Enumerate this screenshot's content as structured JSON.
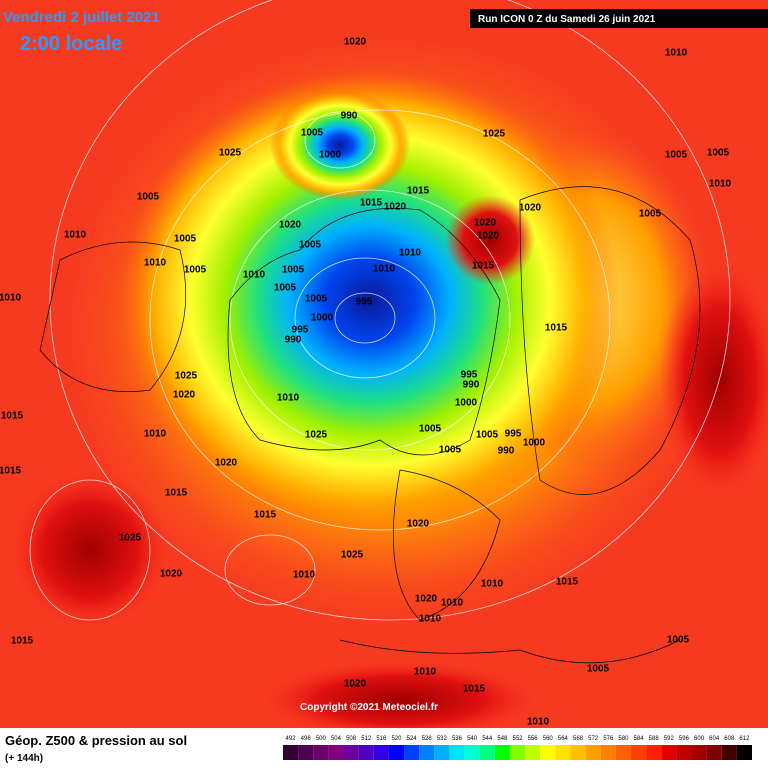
{
  "header": {
    "date": "Vendredi 2 juillet 2021",
    "time": "2:00 locale",
    "run": "Run ICON 0 Z du Samedi 26 juin 2021"
  },
  "footer": {
    "title": "Géop. Z500 & pression au sol",
    "lead": "(+ 144h)",
    "copyright": "Copyright ©2021 Meteociel.fr"
  },
  "legend": {
    "levels": [
      492,
      496,
      500,
      504,
      508,
      512,
      516,
      520,
      524,
      528,
      532,
      536,
      540,
      544,
      548,
      552,
      556,
      560,
      564,
      568,
      572,
      576,
      580,
      584,
      588,
      592,
      596,
      600,
      604,
      608,
      612
    ],
    "colors": [
      "#320032",
      "#500050",
      "#6a006a",
      "#800080",
      "#6c00a0",
      "#5000c0",
      "#3000e0",
      "#0000ff",
      "#0040ff",
      "#0080ff",
      "#00b0ff",
      "#00e0ff",
      "#00ffd0",
      "#00ff80",
      "#00ff00",
      "#80ff00",
      "#c0ff00",
      "#ffff00",
      "#ffe000",
      "#ffc000",
      "#ffa000",
      "#ff8000",
      "#ff6000",
      "#ff4000",
      "#ff2000",
      "#e00000",
      "#c00000",
      "#a00000",
      "#800000",
      "#400000",
      "#000000"
    ]
  },
  "pressure_labels": [
    1020,
    1010,
    990,
    1005,
    1000,
    1025,
    1025,
    1005,
    1005,
    1010,
    1015,
    1015,
    1020,
    1020,
    1005,
    1020,
    1020,
    1020,
    1010,
    1005,
    1005,
    1010,
    1015,
    1010,
    1005,
    995,
    1005,
    1000,
    995,
    990,
    1015,
    995,
    990,
    1025,
    1020,
    1010,
    1000,
    1005,
    1025,
    1005,
    995,
    990,
    1000,
    1005,
    1010,
    1020,
    1015,
    1015,
    1020,
    1025,
    1025,
    1020,
    1010,
    1015,
    1010,
    1020,
    1010,
    1010,
    1015,
    1010,
    1020,
    1015,
    1010,
    1005,
    1005,
    1015,
    1015,
    1010,
    1005,
    1010,
    1005,
    1010,
    1005
  ]
}
